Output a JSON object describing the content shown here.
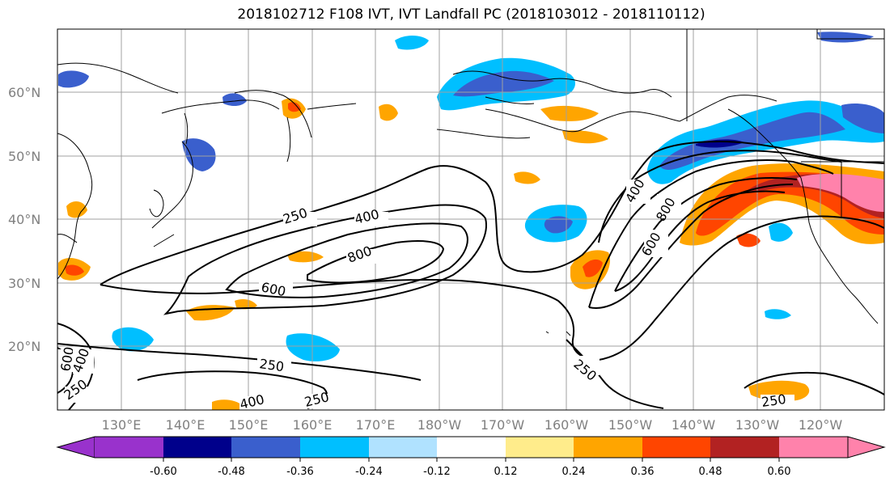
{
  "title": "2018102712 F108 IVT, IVT Landfall PC (2018103012 - 2018110112)",
  "latitude_labels": [
    "60°N",
    "50°N",
    "40°N",
    "30°N",
    "20°N"
  ],
  "longitude_labels": [
    "130°E",
    "140°E",
    "150°E",
    "160°E",
    "170°E",
    "180°W",
    "170°W",
    "160°W",
    "150°W",
    "140°W",
    "130°W",
    "120°W"
  ],
  "contour_labels": [
    {
      "id": "c250a",
      "text": "250"
    },
    {
      "id": "c400a",
      "text": "400"
    },
    {
      "id": "c800a",
      "text": "800"
    },
    {
      "id": "c600a",
      "text": "600"
    },
    {
      "id": "c400b",
      "text": "400"
    },
    {
      "id": "c800b",
      "text": "800"
    },
    {
      "id": "c600b",
      "text": "600"
    },
    {
      "id": "c250b",
      "text": "250"
    },
    {
      "id": "c250c",
      "text": "250"
    },
    {
      "id": "c250d",
      "text": "250"
    },
    {
      "id": "c400c",
      "text": "400"
    },
    {
      "id": "c250e",
      "text": "250"
    },
    {
      "id": "c600c",
      "text": "600"
    },
    {
      "id": "c400d",
      "text": "400"
    },
    {
      "id": "c250f",
      "text": "250"
    }
  ],
  "colorbar": {
    "colors": [
      "#9932cc",
      "#00008b",
      "#3a5fcd",
      "#00bfff",
      "#b0e2ff",
      "#ffffff",
      "#ffec8b",
      "#ffa500",
      "#ff4500",
      "#b22222",
      "#ff82ab"
    ],
    "tick_labels": [
      "-0.60",
      "-0.48",
      "-0.36",
      "-0.24",
      "-0.12",
      "0.12",
      "0.24",
      "0.36",
      "0.48",
      "0.60"
    ]
  },
  "colors": {
    "contour": "#000000",
    "grid": "#a0a0a0",
    "coast": "#000000"
  }
}
